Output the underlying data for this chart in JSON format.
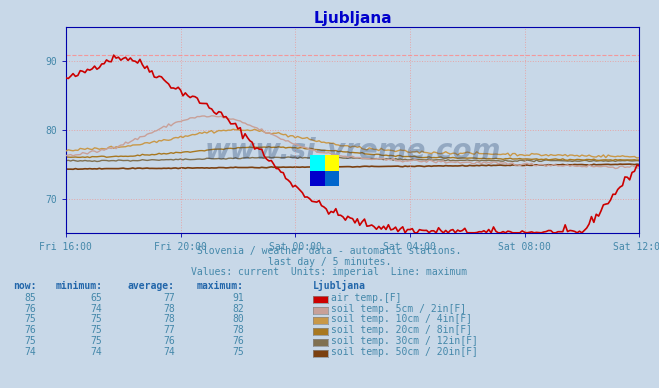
{
  "title": "Ljubljana",
  "background_color": "#c8d8e8",
  "plot_bg_color": "#c8d8e8",
  "grid_color": "#e8a0a0",
  "title_color": "#0000cc",
  "axis_color": "#0000aa",
  "tick_color": "#4488aa",
  "text_color": "#4488aa",
  "subtitle_lines": [
    "Slovenia / weather data - automatic stations.",
    "last day / 5 minutes.",
    "Values: current  Units: imperial  Line: maximum"
  ],
  "ylim": [
    65,
    95
  ],
  "yticks": [
    70,
    80,
    90
  ],
  "x_labels": [
    "Fri 16:00",
    "Fri 20:00",
    "Sat 00:00",
    "Sat 04:00",
    "Sat 08:00",
    "Sat 12:00"
  ],
  "x_positions": [
    0,
    4,
    8,
    12,
    16,
    20
  ],
  "max_line_value": 91,
  "series": [
    {
      "name": "air temp.[F]",
      "color": "#cc0000",
      "lw": 1.2,
      "now": 85,
      "min": 65,
      "avg": 77,
      "max": 91
    },
    {
      "name": "soil temp. 5cm / 2in[F]",
      "color": "#c8a098",
      "lw": 1.0,
      "now": 76,
      "min": 74,
      "avg": 78,
      "max": 82
    },
    {
      "name": "soil temp. 10cm / 4in[F]",
      "color": "#c89848",
      "lw": 1.0,
      "now": 75,
      "min": 75,
      "avg": 78,
      "max": 80
    },
    {
      "name": "soil temp. 20cm / 8in[F]",
      "color": "#a87820",
      "lw": 1.0,
      "now": 76,
      "min": 75,
      "avg": 77,
      "max": 78
    },
    {
      "name": "soil temp. 30cm / 12in[F]",
      "color": "#807050",
      "lw": 1.0,
      "now": 75,
      "min": 75,
      "avg": 76,
      "max": 76
    },
    {
      "name": "soil temp. 50cm / 20in[F]",
      "color": "#7b4010",
      "lw": 1.2,
      "now": 74,
      "min": 74,
      "avg": 74,
      "max": 75
    }
  ],
  "table_header": [
    "now:",
    "minimum:",
    "average:",
    "maximum:",
    "Ljubljana"
  ],
  "table_rows": [
    [
      85,
      65,
      77,
      91,
      "air temp.[F]"
    ],
    [
      76,
      74,
      78,
      82,
      "soil temp. 5cm / 2in[F]"
    ],
    [
      75,
      75,
      78,
      80,
      "soil temp. 10cm / 4in[F]"
    ],
    [
      76,
      75,
      77,
      78,
      "soil temp. 20cm / 8in[F]"
    ],
    [
      75,
      75,
      76,
      76,
      "soil temp. 30cm / 12in[F]"
    ],
    [
      74,
      74,
      74,
      75,
      "soil temp. 50cm / 20in[F]"
    ]
  ]
}
